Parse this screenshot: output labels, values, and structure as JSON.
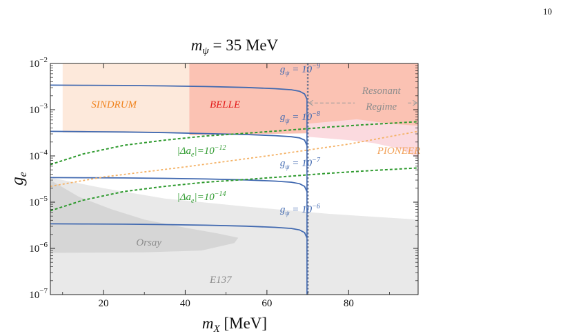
{
  "page_number": "10",
  "chart_data": {
    "type": "line",
    "title": "m_ψ = 35 MeV",
    "xlabel": "m_X [MeV]",
    "ylabel": "g_e",
    "x_scale": "linear",
    "y_scale": "log",
    "xlim": [
      7,
      97
    ],
    "ylim": [
      1e-07,
      0.01
    ],
    "x_ticks": [
      {
        "value": 20,
        "label": "20"
      },
      {
        "value": 40,
        "label": "40"
      },
      {
        "value": 60,
        "label": "60"
      },
      {
        "value": 80,
        "label": "80"
      }
    ],
    "y_ticks": [
      {
        "value": 0.01,
        "base": "10",
        "exp": "−2"
      },
      {
        "value": 0.001,
        "base": "10",
        "exp": "−3"
      },
      {
        "value": 0.0001,
        "base": "10",
        "exp": "−4"
      },
      {
        "value": 1e-05,
        "base": "10",
        "exp": "−5"
      },
      {
        "value": 1e-06,
        "base": "10",
        "exp": "−6"
      },
      {
        "value": 1e-07,
        "base": "10",
        "exp": "−7"
      }
    ],
    "regions": [
      {
        "name": "SINDRUM",
        "label": "SINDRUM",
        "color": "#fde9db",
        "label_color": "#f0841f",
        "polygon": [
          [
            10,
            0.01
          ],
          [
            41,
            0.01
          ],
          [
            41,
            0.00032
          ],
          [
            10,
            0.00032
          ]
        ],
        "label_at": [
          17,
          0.0011
        ]
      },
      {
        "name": "BELLE",
        "label": "BELLE",
        "color": "#fbc2b3",
        "label_color": "#e31b1b",
        "polygon": [
          [
            41,
            0.01
          ],
          [
            97,
            0.01
          ],
          [
            97,
            0.00038
          ],
          [
            80,
            0.00032
          ],
          [
            41,
            0.00028
          ]
        ],
        "label_at": [
          46,
          0.0011
        ]
      },
      {
        "name": "PIONEER",
        "label": "PIONEER",
        "color": "#fbdadf",
        "label_color": "#f2a25a",
        "polygon": [
          [
            70,
            0.0005
          ],
          [
            82,
            0.00062
          ],
          [
            90,
            0.0005
          ],
          [
            97,
            0.00045
          ],
          [
            97,
            9e-05
          ],
          [
            93,
            0.00014
          ],
          [
            86,
            0.00019
          ],
          [
            80,
            0.00022
          ],
          [
            70,
            0.00026
          ]
        ],
        "label_at": [
          87,
          0.00011
        ]
      },
      {
        "name": "Orsay",
        "label": "Orsay",
        "color": "#d6d6d6",
        "label_color": "#8c8c8c",
        "polygon": [
          [
            7,
            3e-05
          ],
          [
            14,
            1.3e-05
          ],
          [
            22,
            7e-06
          ],
          [
            30,
            4.2e-06
          ],
          [
            40,
            2.8e-06
          ],
          [
            48,
            2.1e-06
          ],
          [
            53,
            1.7e-06
          ],
          [
            52,
            1.3e-06
          ],
          [
            44,
            9e-07
          ],
          [
            30,
            8.2e-07
          ],
          [
            7,
            8e-07
          ]
        ],
        "label_at": [
          28,
          1.15e-06
        ]
      },
      {
        "name": "E137",
        "label": "E137",
        "color": "#e9e9e9",
        "label_color": "#8c8c8c",
        "polygon": [
          [
            7,
            3.4e-05
          ],
          [
            20,
            2e-05
          ],
          [
            35,
            1.2e-05
          ],
          [
            55,
            8e-06
          ],
          [
            75,
            5.6e-06
          ],
          [
            97,
            4.2e-06
          ],
          [
            97,
            1e-07
          ],
          [
            7,
            1e-07
          ]
        ],
        "label_at": [
          46,
          1.8e-07
        ]
      }
    ],
    "series": [
      {
        "name": "g_ψ = 10^-9",
        "label_base": "g",
        "label_sub": "ψ",
        "label_mid": " = 10",
        "label_exp": "−9",
        "color": "#4169b0",
        "style": "solid",
        "label_at": [
          63.2,
          0.0064
        ],
        "x": [
          7,
          15,
          25,
          35,
          45,
          55,
          62,
          66,
          68,
          69.2,
          69.8
        ],
        "y": [
          0.0034,
          0.00338,
          0.00334,
          0.00327,
          0.00317,
          0.00302,
          0.00285,
          0.0027,
          0.0025,
          0.0022,
          0.0017
        ]
      },
      {
        "name": "g_ψ = 10^-8",
        "label_base": "g",
        "label_sub": "ψ",
        "label_mid": " = 10",
        "label_exp": "−8",
        "color": "#4169b0",
        "style": "solid",
        "label_at": [
          63.2,
          0.0006
        ],
        "x": [
          7,
          15,
          25,
          35,
          45,
          55,
          62,
          66,
          68,
          69.2,
          69.8
        ],
        "y": [
          0.00034,
          0.000335,
          0.00033,
          0.00032,
          0.000305,
          0.00029,
          0.000275,
          0.00026,
          0.000245,
          0.00022,
          0.00017
        ]
      },
      {
        "name": "g_ψ = 10^-7",
        "label_base": "g",
        "label_sub": "ψ",
        "label_mid": " = 10",
        "label_exp": "−7",
        "color": "#4169b0",
        "style": "solid",
        "label_at": [
          63.2,
          6e-05
        ],
        "x": [
          7,
          15,
          25,
          35,
          45,
          55,
          62,
          66,
          68,
          69.2,
          69.8
        ],
        "y": [
          3.4e-05,
          3.38e-05,
          3.34e-05,
          3.27e-05,
          3.17e-05,
          3.02e-05,
          2.85e-05,
          2.7e-05,
          2.5e-05,
          2.2e-05,
          1.7e-05
        ]
      },
      {
        "name": "g_ψ = 10^-6",
        "label_base": "g",
        "label_sub": "ψ",
        "label_mid": " = 10",
        "label_exp": "−6",
        "color": "#4169b0",
        "style": "solid",
        "label_at": [
          63.2,
          6e-06
        ],
        "x": [
          7,
          15,
          25,
          35,
          45,
          55,
          62,
          66,
          68,
          69.2,
          69.8
        ],
        "y": [
          3.4e-06,
          3.38e-06,
          3.34e-06,
          3.27e-06,
          3.17e-06,
          3.02e-06,
          2.85e-06,
          2.7e-06,
          2.5e-06,
          2.2e-06,
          1.7e-06
        ]
      },
      {
        "name": "|Δa_e|=10^-12",
        "label_base": "|Δa",
        "label_sub": "e",
        "label_mid": "|=10",
        "label_exp": "−12",
        "color": "#2e9a2e",
        "style": "dashed",
        "label_at": [
          38,
          0.00011
        ],
        "x": [
          7,
          15,
          25,
          35,
          45,
          55,
          65,
          75,
          85,
          97
        ],
        "y": [
          6.5e-05,
          0.00011,
          0.00017,
          0.00022,
          0.00027,
          0.00031,
          0.00036,
          0.00042,
          0.00048,
          0.00055
        ]
      },
      {
        "name": "|Δa_e|=10^-14",
        "label_base": "|Δa",
        "label_sub": "e",
        "label_mid": "|=10",
        "label_exp": "−14",
        "color": "#2e9a2e",
        "style": "dashed",
        "label_at": [
          38,
          1.1e-05
        ],
        "x": [
          7,
          15,
          25,
          35,
          45,
          55,
          65,
          75,
          85,
          97
        ],
        "y": [
          6.5e-06,
          1.1e-05,
          1.7e-05,
          2.2e-05,
          2.7e-05,
          3.1e-05,
          3.6e-05,
          4.2e-05,
          4.8e-05,
          5.5e-05
        ]
      },
      {
        "name": "PIONEER projection",
        "color": "#f4b266",
        "style": "dotted",
        "x": [
          7,
          20,
          40,
          60,
          80,
          97
        ],
        "y": [
          2.2e-05,
          3.5e-05,
          5.8e-05,
          0.0001,
          0.00018,
          0.00034
        ]
      }
    ],
    "vertical_lines": [
      {
        "x": 70,
        "color": "#707890",
        "style": "dotted"
      }
    ],
    "annotations": [
      {
        "text": "Resonant",
        "at": [
          88,
          0.0022
        ],
        "color": "#8c8c8c"
      },
      {
        "text": "Regime",
        "at": [
          88,
          0.001
        ],
        "color": "#8c8c8c"
      }
    ],
    "resonant_arrow": {
      "from": 70.3,
      "to": 96.7,
      "y": 0.0014,
      "color": "#9a9a9a"
    }
  }
}
